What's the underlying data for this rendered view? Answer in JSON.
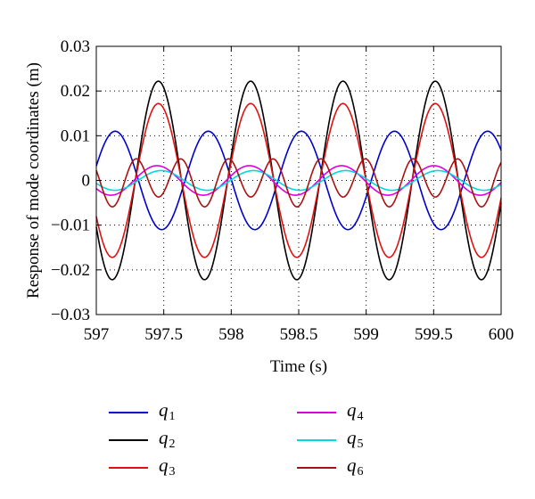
{
  "chart_data": {
    "type": "line",
    "xlabel": "Time (s)",
    "ylabel": "Response of mode coordinates (m)",
    "xlim": [
      597,
      600
    ],
    "ylim": [
      -0.03,
      0.03
    ],
    "xticks": [
      597,
      597.5,
      598,
      598.5,
      599,
      599.5,
      600
    ],
    "xtick_labels": [
      "597",
      "597.5",
      "598",
      "598.5",
      "599",
      "599.5",
      "600"
    ],
    "yticks": [
      -0.03,
      -0.02,
      -0.01,
      0,
      0.01,
      0.02,
      0.03
    ],
    "ytick_labels": [
      "−0.03",
      "−0.02",
      "−0.01",
      "0",
      "0.01",
      "0.02",
      "0.03"
    ],
    "grid": "dotted",
    "legend_position": "below",
    "series": [
      {
        "name": "q",
        "subscript": "1",
        "color": "#0000cc",
        "waves": [
          {
            "amp": 0.011,
            "period": 0.69,
            "peak": 597.14
          }
        ]
      },
      {
        "name": "q",
        "subscript": "2",
        "color": "#000000",
        "waves": [
          {
            "amp": 0.0222,
            "period": 0.684,
            "peak": 597.46
          }
        ]
      },
      {
        "name": "q",
        "subscript": "3",
        "color": "#dd1111",
        "waves": [
          {
            "amp": 0.0172,
            "period": 0.684,
            "peak": 597.46
          }
        ]
      },
      {
        "name": "q",
        "subscript": "4",
        "color": "#dd00dd",
        "waves": [
          {
            "amp": 0.0033,
            "period": 0.684,
            "peak": 597.45
          }
        ]
      },
      {
        "name": "q",
        "subscript": "5",
        "color": "#00d8e0",
        "waves": [
          {
            "amp": 0.0022,
            "period": 0.684,
            "peak": 597.48
          }
        ]
      },
      {
        "name": "q",
        "subscript": "6",
        "color": "#aa1111",
        "waves": [
          {
            "amp": 0.0048,
            "period": 0.342,
            "peak": 597.29
          },
          {
            "amp": 0.0011,
            "period": 0.684,
            "peak": 597.46
          }
        ]
      }
    ]
  }
}
